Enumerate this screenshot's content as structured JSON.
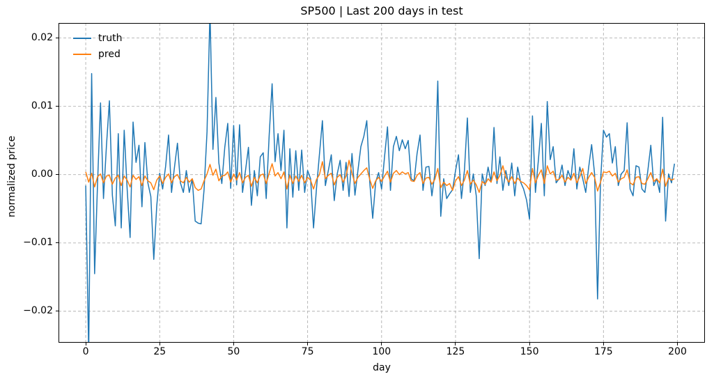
{
  "chart_data": {
    "type": "line",
    "title": "SP500 | Last 200 days in test",
    "xlabel": "day",
    "ylabel": "normalized price",
    "xlim": [
      -9.2,
      209.3
    ],
    "ylim": [
      -0.0246,
      0.0222
    ],
    "xticks": [
      0,
      25,
      50,
      75,
      100,
      125,
      150,
      175,
      200
    ],
    "xtick_labels": [
      "0",
      "25",
      "50",
      "75",
      "100",
      "125",
      "150",
      "175",
      "200"
    ],
    "yticks": [
      0.02,
      0.01,
      0.0,
      -0.01,
      -0.02
    ],
    "ytick_labels": [
      "0.02",
      "0.01",
      "0.00",
      "−0.01",
      "−0.02"
    ],
    "grid": "dashed",
    "grid_color": "#b0b0b0",
    "legend_position": "upper-left",
    "x_start": 0,
    "x_step": 1,
    "series": [
      {
        "name": "truth",
        "color": "#1f77b4",
        "values": [
          -0.0016,
          -0.026,
          0.0148,
          -0.0145,
          -0.0012,
          0.0105,
          -0.0035,
          0.0042,
          0.0108,
          -0.003,
          -0.0075,
          0.006,
          -0.0078,
          0.0065,
          -0.0021,
          -0.0092,
          0.0077,
          0.0018,
          0.0043,
          -0.0047,
          0.0047,
          -0.0012,
          -0.0032,
          -0.0124,
          -0.0046,
          0.0002,
          -0.0021,
          0.0012,
          0.0058,
          -0.0026,
          0.0011,
          0.0046,
          -0.0012,
          -0.0026,
          0.0006,
          -0.0026,
          -0.0006,
          -0.0068,
          -0.0071,
          -0.0072,
          -0.0022,
          0.0063,
          0.024,
          0.0037,
          0.0113,
          0.0017,
          -0.0013,
          0.004,
          0.0075,
          -0.002,
          0.0072,
          -0.0015,
          0.0073,
          -0.0026,
          0.0006,
          0.004,
          -0.0045,
          0.0006,
          -0.0031,
          0.0026,
          0.0032,
          -0.0035,
          0.0057,
          0.0133,
          0.0019,
          0.006,
          0.0006,
          0.0065,
          -0.0078,
          0.0038,
          -0.0033,
          0.0035,
          -0.0023,
          0.0036,
          -0.0026,
          0.0006,
          -0.0006,
          -0.0078,
          -0.002,
          0.003,
          0.0079,
          -0.0016,
          0.0006,
          0.0029,
          -0.0038,
          0.0001,
          0.0021,
          -0.0023,
          0.0018,
          -0.0032,
          0.0031,
          -0.003,
          0.0006,
          0.0041,
          0.0056,
          0.0079,
          -0.0011,
          -0.0064,
          -0.0011,
          0.0003,
          -0.0021,
          0.0026,
          0.007,
          -0.0023,
          0.0041,
          0.0056,
          0.0035,
          0.0051,
          0.0038,
          0.005,
          -0.0006,
          -0.0009,
          0.0031,
          0.0058,
          -0.0023,
          0.0011,
          0.0012,
          -0.0031,
          0.0001,
          0.0137,
          -0.0061,
          -0.0006,
          -0.0035,
          -0.0028,
          -0.0022,
          0.0006,
          0.0029,
          -0.0035,
          0.0006,
          0.0083,
          -0.0026,
          0.0001,
          -0.0031,
          -0.0123,
          0.0001,
          -0.0016,
          0.0011,
          -0.0011,
          0.0069,
          -0.0013,
          0.0026,
          -0.0023,
          0.0006,
          -0.0016,
          0.0017,
          -0.0031,
          0.0011,
          -0.0011,
          -0.0021,
          -0.0037,
          -0.0065,
          0.0086,
          -0.0026,
          0.0021,
          0.0075,
          -0.0031,
          0.0107,
          0.0022,
          0.0041,
          -0.0012,
          -0.0006,
          0.0014,
          -0.0016,
          0.0006,
          -0.0006,
          0.0038,
          -0.0021,
          0.0011,
          -0.0006,
          -0.0026,
          0.0011,
          0.0044,
          0.0001,
          -0.0182,
          -0.0011,
          0.0065,
          0.0055,
          0.006,
          0.0017,
          0.0041,
          -0.0016,
          0.0001,
          0.0006,
          0.0076,
          -0.0021,
          -0.0031,
          0.0013,
          0.0011,
          -0.0021,
          -0.0026,
          0.0006,
          0.0043,
          -0.0016,
          -0.0006,
          -0.0026,
          0.0084,
          -0.0068,
          0.0001,
          -0.0012,
          0.0016
        ]
      },
      {
        "name": "pred",
        "color": "#ff7f0e",
        "values": [
          0.0004,
          -0.0011,
          0.0002,
          -0.0018,
          -0.0003,
          0.0001,
          -0.0012,
          -0.0002,
          -0.0001,
          -0.0014,
          -0.0005,
          -0.0001,
          -0.0016,
          -0.0002,
          -0.0008,
          -0.0018,
          -0.0001,
          -0.0007,
          -0.0003,
          -0.0016,
          -0.0002,
          -0.0009,
          -0.0012,
          -0.0022,
          -0.0008,
          -0.0002,
          -0.0013,
          -0.0004,
          0.0001,
          -0.0012,
          -0.0003,
          0.0,
          -0.0009,
          -0.0012,
          -0.0004,
          -0.0011,
          -0.0006,
          -0.0019,
          -0.0023,
          -0.0021,
          -0.0009,
          0.0001,
          0.0015,
          -0.0001,
          0.0008,
          -0.0009,
          -0.0002,
          -0.0001,
          0.0004,
          -0.0011,
          0.0001,
          -0.0008,
          0.0003,
          -0.0012,
          -0.0004,
          -0.0001,
          -0.0017,
          -0.0004,
          -0.0012,
          -0.0001,
          0.0001,
          -0.0013,
          0.0002,
          0.0016,
          -0.0002,
          0.0003,
          -0.0006,
          0.0004,
          -0.0021,
          -0.0001,
          -0.0013,
          -0.0002,
          -0.001,
          -0.0001,
          -0.0012,
          -0.0004,
          -0.0008,
          -0.0021,
          -0.0007,
          0.0,
          0.0019,
          -0.0006,
          -0.0001,
          0.0002,
          -0.0015,
          -0.0004,
          0.0,
          -0.0011,
          -0.0002,
          0.0021,
          0.0002,
          -0.0013,
          -0.0004,
          0.0001,
          0.0006,
          0.001,
          -0.0007,
          -0.002,
          -0.0009,
          -0.0004,
          -0.001,
          -0.0002,
          0.0005,
          -0.0011,
          0.0002,
          0.0006,
          0.0,
          0.0004,
          0.0001,
          0.0003,
          -0.0009,
          -0.001,
          -0.0001,
          0.0003,
          -0.0013,
          -0.0005,
          -0.0004,
          -0.0014,
          -0.0007,
          0.0009,
          -0.0019,
          -0.0011,
          -0.0016,
          -0.0013,
          -0.0023,
          -0.0009,
          -0.0003,
          -0.0016,
          -0.0008,
          0.0006,
          -0.0014,
          -0.0008,
          -0.0015,
          -0.0026,
          -0.001,
          -0.0014,
          -0.0006,
          -0.0011,
          0.0004,
          -0.0009,
          -0.0001,
          0.0013,
          -0.0004,
          -0.0011,
          -0.0003,
          -0.0013,
          -0.0005,
          -0.001,
          -0.0012,
          -0.0016,
          -0.0022,
          0.0009,
          -0.0012,
          -0.0001,
          0.0007,
          -0.0013,
          0.0013,
          0.0001,
          0.0005,
          -0.0008,
          -0.0007,
          -0.0001,
          -0.0011,
          -0.0004,
          -0.0008,
          0.0002,
          -0.0012,
          -0.0003,
          0.0009,
          -0.0013,
          -0.0004,
          0.0003,
          -0.0004,
          -0.0024,
          -0.0011,
          0.0004,
          0.0003,
          0.0005,
          -0.0002,
          0.0002,
          -0.0011,
          -0.0006,
          -0.0004,
          0.0007,
          -0.0012,
          -0.0015,
          -0.0004,
          -0.0003,
          -0.0013,
          -0.0014,
          -0.0006,
          0.0003,
          -0.001,
          -0.0006,
          -0.0012,
          0.0008,
          -0.0017,
          -0.0005,
          -0.0008,
          -0.0006
        ]
      }
    ]
  }
}
